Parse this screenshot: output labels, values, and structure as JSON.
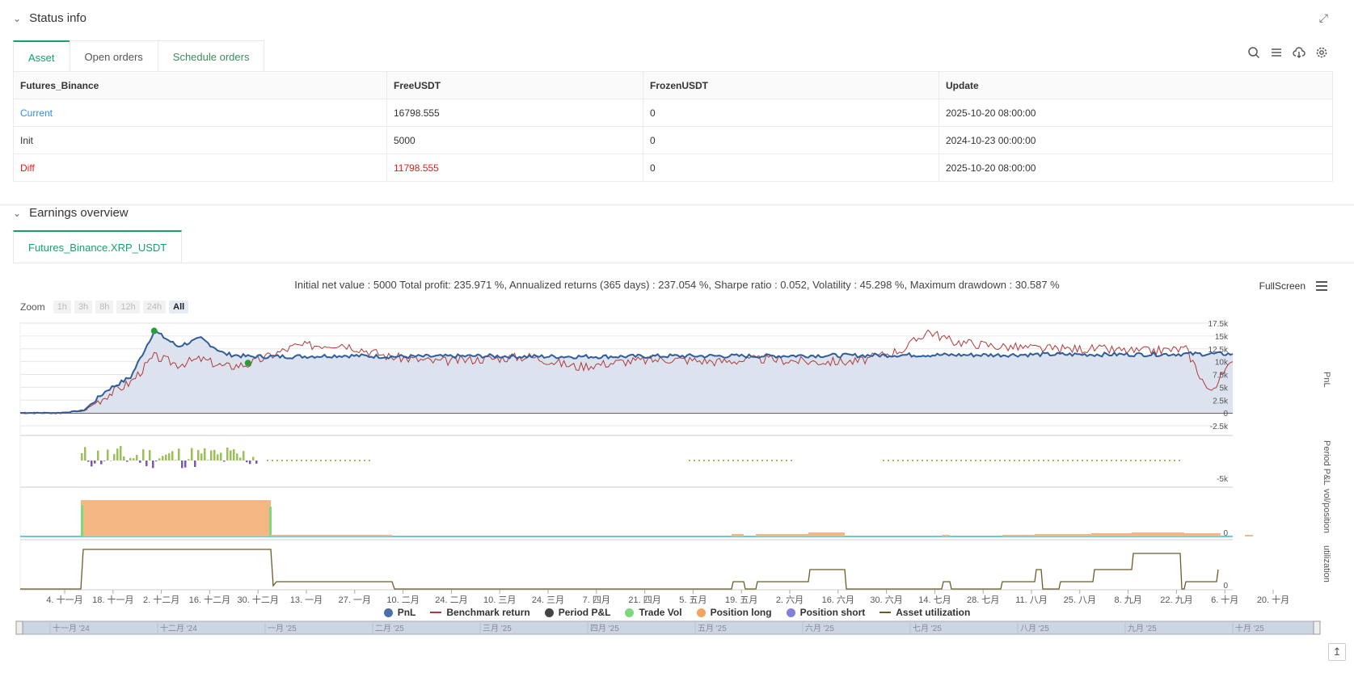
{
  "status": {
    "title": "Status info",
    "tabs": [
      "Asset",
      "Open orders",
      "Schedule orders"
    ],
    "table": {
      "headers": [
        "Futures_Binance",
        "FreeUSDT",
        "FrozenUSDT",
        "Update"
      ],
      "rows": [
        [
          "Current",
          "16798.555",
          "0",
          "2025-10-20 08:00:00"
        ],
        [
          "Init",
          "5000",
          "0",
          "2024-10-23 00:00:00"
        ],
        [
          "Diff",
          "11798.555",
          "0",
          "2025-10-20 08:00:00"
        ]
      ]
    },
    "icons": [
      "search-icon",
      "list-icon",
      "cloud-download-icon",
      "gear-icon",
      "collapse-icon"
    ]
  },
  "earnings": {
    "title": "Earnings overview",
    "tab": "Futures_Binance.XRP_USDT",
    "summary": "Initial net value : 5000 Total profit: 235.971 %, Annualized returns (365 days) : 237.054 %, Sharpe ratio : 0.052, Volatility : 45.298 %, Maximum drawdown : 30.587 %",
    "zoom_label": "Zoom",
    "zoom_buttons": [
      "1h",
      "3h",
      "8h",
      "12h",
      "24h",
      "All"
    ],
    "fullscreen": "FullScreen",
    "axis_titles": [
      "PnL",
      "Period P&L",
      "vol/position",
      "utilization"
    ],
    "pnl_ticks": [
      "17.5k",
      "15k",
      "12.5k",
      "10k",
      "7.5k",
      "5k",
      "2.5k",
      "0",
      "-2.5k"
    ],
    "period_tick": "-5k",
    "zero": "0",
    "x_ticks": [
      "4. 十一月",
      "18. 十一月",
      "2. 十二月",
      "16. 十二月",
      "30. 十二月",
      "13. 一月",
      "27. 一月",
      "10. 二月",
      "24. 二月",
      "10. 三月",
      "24. 三月",
      "7. 四月",
      "21. 四月",
      "5. 五月",
      "19. 五月",
      "2. 六月",
      "16. 六月",
      "30. 六月",
      "14. 七月",
      "28. 七月",
      "11. 八月",
      "25. 八月",
      "8. 九月",
      "22. 九月",
      "6. 十月",
      "20. 十月"
    ],
    "nav_ticks": [
      "十一月 '24",
      "十二月 '24",
      "一月 '25",
      "二月 '25",
      "三月 '25",
      "四月 '25",
      "五月 '25",
      "六月 '25",
      "七月 '25",
      "八月 '25",
      "九月 '25",
      "十月 '25"
    ],
    "legend": [
      {
        "label": "PnL",
        "color": "#4a6fa5",
        "shape": "dot"
      },
      {
        "label": "Benchmark return",
        "color": "#b03a3a",
        "shape": "line"
      },
      {
        "label": "Period P&L",
        "color": "#444444",
        "shape": "dot"
      },
      {
        "label": "Trade Vol",
        "color": "#7ed87e",
        "shape": "dot"
      },
      {
        "label": "Position long",
        "color": "#f4a460",
        "shape": "dot"
      },
      {
        "label": "Position short",
        "color": "#8080e0",
        "shape": "dot"
      },
      {
        "label": "Asset utilization",
        "color": "#6b5a2a",
        "shape": "line"
      }
    ]
  },
  "chart_data": {
    "type": "line",
    "title": "",
    "x": [
      "2024-10-23",
      "2024-11-04",
      "2024-11-11",
      "2024-11-18",
      "2024-11-25",
      "2024-12-02",
      "2024-12-09",
      "2024-12-16",
      "2024-12-23",
      "2024-12-30",
      "2025-01-13",
      "2025-01-27",
      "2025-02-10",
      "2025-02-24",
      "2025-03-10",
      "2025-03-24",
      "2025-04-07",
      "2025-04-21",
      "2025-05-05",
      "2025-05-19",
      "2025-06-02",
      "2025-06-16",
      "2025-06-30",
      "2025-07-14",
      "2025-07-21",
      "2025-07-28",
      "2025-08-11",
      "2025-08-25",
      "2025-09-08",
      "2025-09-22",
      "2025-10-06",
      "2025-10-13",
      "2025-10-20"
    ],
    "series": [
      {
        "name": "PnL",
        "values": [
          0,
          0,
          500,
          4500,
          7000,
          16000,
          13000,
          14500,
          11500,
          11000,
          11000,
          11200,
          11000,
          11000,
          11100,
          11000,
          11000,
          11000,
          11100,
          11100,
          11100,
          11200,
          11200,
          11300,
          11300,
          11300,
          11300,
          11400,
          11400,
          11400,
          11500,
          11500,
          11500
        ]
      },
      {
        "name": "Benchmark return",
        "values": [
          0,
          0,
          400,
          3500,
          6000,
          11000,
          9500,
          10500,
          9000,
          9500,
          13000,
          13500,
          11000,
          10000,
          10500,
          11000,
          9000,
          10000,
          10500,
          10000,
          10500,
          10000,
          10000,
          12500,
          16000,
          14000,
          13000,
          12500,
          12500,
          12000,
          12500,
          4000,
          10000
        ]
      }
    ],
    "ylim": [
      -2500,
      17500
    ],
    "grid": true,
    "legend": "bottom"
  }
}
